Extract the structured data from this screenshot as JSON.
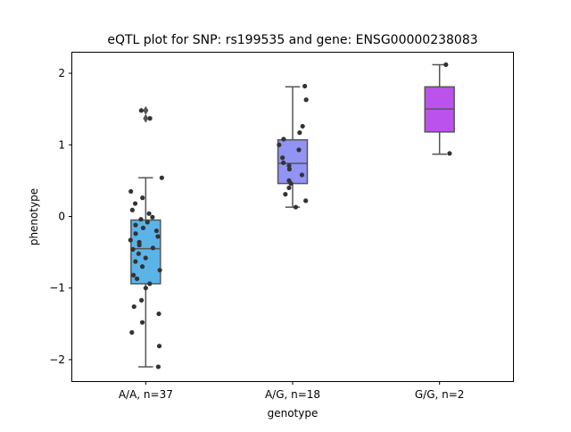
{
  "chart_data": {
    "type": "box",
    "title": "eQTL plot for SNP: rs199535 and gene: ENSG00000238083",
    "xlabel": "genotype",
    "ylabel": "phenotype",
    "ylim": [
      -2.3,
      2.3
    ],
    "yticks": [
      -2,
      -1,
      0,
      1,
      2
    ],
    "grid": false,
    "legend": "none",
    "categories": [
      "A/A, n=37",
      "A/G, n=18",
      "G/G, n=2"
    ],
    "boxes": [
      {
        "category": "A/A, n=37",
        "color": "#5ab4e8",
        "q1": -0.94,
        "median": -0.45,
        "q3": -0.05,
        "whisker_low": -2.1,
        "whisker_high": 0.54,
        "outliers": [
          1.48,
          1.37
        ]
      },
      {
        "category": "A/G, n=18",
        "color": "#9193f5",
        "q1": 0.46,
        "median": 0.74,
        "q3": 1.07,
        "whisker_low": 0.13,
        "whisker_high": 1.81,
        "outliers": []
      },
      {
        "category": "G/G, n=2",
        "color": "#bb52ec",
        "q1": 1.18,
        "median": 1.5,
        "q3": 1.81,
        "whisker_low": 0.87,
        "whisker_high": 2.12,
        "outliers": []
      }
    ],
    "points": [
      [
        -2.1,
        -1.81,
        -1.62,
        -1.48,
        -1.36,
        -1.26,
        -1.17,
        -1.0,
        -0.94,
        -0.87,
        -0.82,
        -0.75,
        -0.7,
        -0.63,
        -0.58,
        -0.52,
        -0.46,
        -0.44,
        -0.4,
        -0.36,
        -0.33,
        -0.28,
        -0.24,
        -0.2,
        -0.16,
        -0.12,
        -0.08,
        -0.04,
        -0.01,
        0.04,
        0.09,
        0.18,
        0.26,
        0.35,
        0.54,
        1.48,
        1.37
      ],
      [
        0.13,
        0.22,
        0.31,
        0.4,
        0.46,
        0.5,
        0.58,
        0.66,
        0.71,
        0.75,
        0.82,
        0.93,
        1.0,
        1.08,
        1.17,
        1.26,
        1.63,
        1.82
      ],
      [
        0.88,
        2.12
      ]
    ]
  }
}
